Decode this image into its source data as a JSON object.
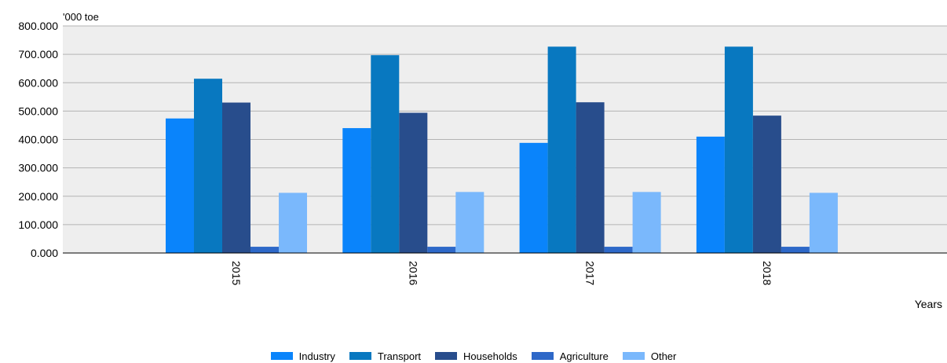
{
  "chart_data": {
    "type": "bar",
    "title": "",
    "unit_label": "'000 toe",
    "xlabel": "Years",
    "ylabel": "",
    "ylim": [
      0,
      800000
    ],
    "y_ticks": [
      "0.000",
      "100.000",
      "200.000",
      "300.000",
      "400.000",
      "500.000",
      "600.000",
      "700.000",
      "800.000"
    ],
    "categories": [
      "2015",
      "2016",
      "2017",
      "2018"
    ],
    "series": [
      {
        "name": "Industry",
        "color": "#0a84fb",
        "values": [
          474000,
          440000,
          388000,
          410000
        ]
      },
      {
        "name": "Transport",
        "color": "#0878c0",
        "values": [
          614000,
          697000,
          727000,
          727000
        ]
      },
      {
        "name": "Households",
        "color": "#284d8c",
        "values": [
          530000,
          494000,
          531000,
          484000
        ]
      },
      {
        "name": "Agriculture",
        "color": "#2e68c8",
        "values": [
          22000,
          22000,
          22000,
          22000
        ]
      },
      {
        "name": "Other",
        "color": "#7ab8fc",
        "values": [
          212000,
          215000,
          215000,
          212000
        ]
      }
    ],
    "grid": true,
    "plot_background": "#eeeeee",
    "legend_position": "bottom"
  }
}
